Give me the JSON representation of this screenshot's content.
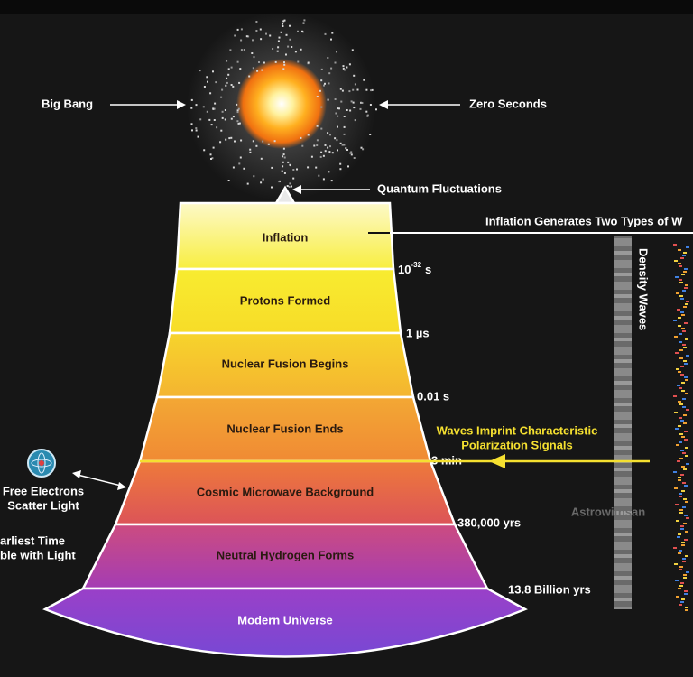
{
  "labels": {
    "big_bang": "Big Bang",
    "zero_seconds": "Zero Seconds",
    "quantum_fluctuations": "Quantum Fluctuations",
    "inflation_generates": "Inflation Generates Two Types of W",
    "density_waves": "Density Waves",
    "waves_imprint": [
      "Waves Imprint Characteristic",
      "Polarization Signals"
    ],
    "free_electrons": [
      "Free Electrons",
      "Scatter Light"
    ],
    "earliest_time": [
      "arliest Time",
      "ble with Light"
    ],
    "watermark": "Astrowithsan"
  },
  "layers": [
    "Inflation",
    "Protons Formed",
    "Nuclear Fusion Begins",
    "Nuclear Fusion Ends",
    "Cosmic Microwave Background",
    "Neutral Hydrogen Forms",
    "Modern Universe"
  ],
  "times": [
    {
      "base": "10",
      "exponent": "-32",
      "unit": "s"
    },
    "1 µs",
    "0.01 s",
    "3 min",
    "380,000 yrs",
    "13.8 Billion yrs"
  ]
}
